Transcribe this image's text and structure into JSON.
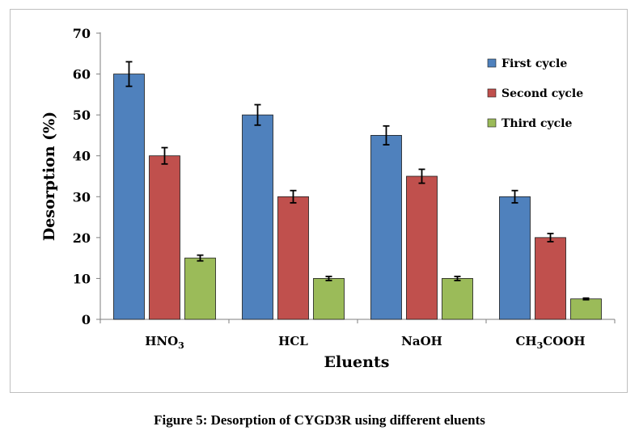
{
  "figure": {
    "caption": "Figure 5: Desorption of CYGD3R using different eluents"
  },
  "chart_data": {
    "type": "bar",
    "xlabel": "Eluents",
    "ylabel": "Desorption (%)",
    "ylim": [
      0,
      70
    ],
    "yticks": [
      0,
      10,
      20,
      30,
      40,
      50,
      60,
      70
    ],
    "grid": false,
    "legend_position": "top-right",
    "categories": [
      {
        "base": "HNO",
        "sub": "3",
        "post": ""
      },
      {
        "base": "HCL",
        "sub": "",
        "post": ""
      },
      {
        "base": "NaOH",
        "sub": "",
        "post": ""
      },
      {
        "base": "CH",
        "sub": "3",
        "post": "COOH"
      }
    ],
    "series": [
      {
        "name": "First cycle",
        "color": "#4f81bd",
        "values": [
          60,
          50,
          45,
          30
        ],
        "errors": [
          3.0,
          2.5,
          2.3,
          1.5
        ]
      },
      {
        "name": "Second cycle",
        "color": "#c0504d",
        "values": [
          40,
          30,
          35,
          20
        ],
        "errors": [
          2.0,
          1.5,
          1.7,
          1.0
        ]
      },
      {
        "name": "Third cycle",
        "color": "#9bbb59",
        "values": [
          15,
          10,
          10,
          5
        ],
        "errors": [
          0.7,
          0.5,
          0.5,
          0.2
        ]
      }
    ]
  }
}
